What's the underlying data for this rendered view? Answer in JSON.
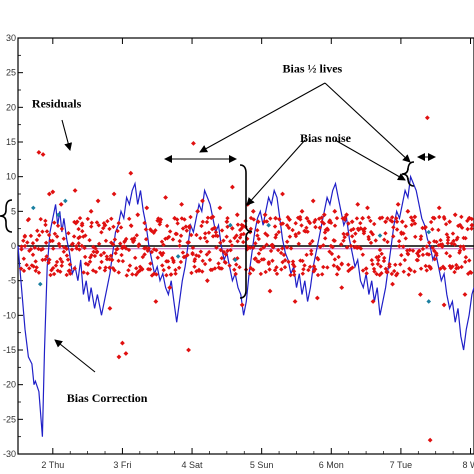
{
  "chart_data": {
    "type": "scatter",
    "title": "",
    "xlabel": "",
    "ylabel": "",
    "xlim": [
      1.5,
      8.05
    ],
    "ylim": [
      -30,
      30
    ],
    "x_ticks": [
      {
        "x": 2,
        "label": "2 Thu"
      },
      {
        "x": 3,
        "label": "3 Fri"
      },
      {
        "x": 4,
        "label": "4 Sat"
      },
      {
        "x": 5,
        "label": "5 Sun"
      },
      {
        "x": 6,
        "label": "6 Mon"
      },
      {
        "x": 7,
        "label": "7 Tue"
      },
      {
        "x": 8,
        "label": "8 W"
      }
    ],
    "y_ticks": [
      30,
      25,
      20,
      15,
      10,
      5,
      0,
      -5,
      -10,
      -15,
      -20,
      -25,
      -30
    ],
    "y_tick_labels": [
      "30",
      "25",
      "20",
      "15",
      "10",
      "5",
      "0",
      "-5",
      "-10",
      "-15",
      "-20",
      "-25",
      "-30"
    ],
    "reference_line": {
      "y": 0,
      "color": "#000000"
    },
    "colors": {
      "residuals": "#e01010",
      "bias_correction": "#2020c8",
      "highlight": "#1a7fa0",
      "zero_line": "#000000",
      "minor_line": "#c060c0"
    },
    "series": [
      {
        "type": "line",
        "values": [
          [
            1.5,
            0.0
          ],
          [
            1.6,
            -12.0
          ],
          [
            1.65,
            -16.0
          ],
          [
            1.7,
            -17.0
          ],
          [
            1.73,
            -20.0
          ],
          [
            1.75,
            -19.5
          ],
          [
            1.8,
            -21.0
          ],
          [
            1.85,
            -27.5
          ],
          [
            1.88,
            -15.0
          ],
          [
            1.92,
            -3.0
          ],
          [
            1.96,
            2.0
          ],
          [
            2.0,
            4.0
          ],
          [
            2.04,
            6.0
          ],
          [
            2.07,
            3.0
          ],
          [
            2.1,
            5.0
          ],
          [
            2.13,
            2.0
          ],
          [
            2.16,
            4.0
          ],
          [
            2.2,
            1.0
          ],
          [
            2.24,
            -1.0
          ],
          [
            2.28,
            -4.0
          ],
          [
            2.32,
            -3.0
          ],
          [
            2.36,
            -5.0
          ],
          [
            2.4,
            -2.0
          ],
          [
            2.44,
            -7.0
          ],
          [
            2.48,
            -5.0
          ],
          [
            2.52,
            -8.0
          ],
          [
            2.55,
            -6.0
          ],
          [
            2.6,
            -9.0
          ],
          [
            2.64,
            -7.0
          ],
          [
            2.7,
            -10.0
          ],
          [
            2.74,
            -8.0
          ],
          [
            2.78,
            -6.0
          ],
          [
            2.82,
            -4.0
          ],
          [
            2.86,
            -1.0
          ],
          [
            2.9,
            2.0
          ],
          [
            2.94,
            3.0
          ],
          [
            2.98,
            5.0
          ],
          [
            3.02,
            4.0
          ],
          [
            3.06,
            7.0
          ],
          [
            3.1,
            6.0
          ],
          [
            3.14,
            8.0
          ],
          [
            3.18,
            9.0
          ],
          [
            3.22,
            6.0
          ],
          [
            3.26,
            8.0
          ],
          [
            3.3,
            5.0
          ],
          [
            3.34,
            3.0
          ],
          [
            3.38,
            0.0
          ],
          [
            3.42,
            -2.0
          ],
          [
            3.46,
            -4.0
          ],
          [
            3.5,
            -3.0
          ],
          [
            3.54,
            -5.0
          ],
          [
            3.58,
            -4.0
          ],
          [
            3.62,
            -6.0
          ],
          [
            3.66,
            -7.0
          ],
          [
            3.7,
            -5.0
          ],
          [
            3.74,
            -8.0
          ],
          [
            3.78,
            -11.0
          ],
          [
            3.82,
            -8.0
          ],
          [
            3.86,
            -5.0
          ],
          [
            3.9,
            -3.0
          ],
          [
            3.94,
            0.0
          ],
          [
            3.98,
            3.0
          ],
          [
            4.02,
            2.0
          ],
          [
            4.06,
            4.0
          ],
          [
            4.1,
            6.0
          ],
          [
            4.14,
            5.0
          ],
          [
            4.18,
            8.0
          ],
          [
            4.22,
            7.0
          ],
          [
            4.26,
            6.0
          ],
          [
            4.3,
            4.0
          ],
          [
            4.34,
            2.0
          ],
          [
            4.38,
            3.0
          ],
          [
            4.42,
            0.0
          ],
          [
            4.46,
            -2.0
          ],
          [
            4.5,
            -1.0
          ],
          [
            4.54,
            -3.0
          ],
          [
            4.58,
            -5.0
          ],
          [
            4.62,
            -4.0
          ],
          [
            4.66,
            -6.0
          ],
          [
            4.7,
            -7.0
          ],
          [
            4.74,
            -10.0
          ],
          [
            4.78,
            -8.0
          ],
          [
            4.82,
            -4.0
          ],
          [
            4.86,
            -1.0
          ],
          [
            4.9,
            2.0
          ],
          [
            4.94,
            4.0
          ],
          [
            4.98,
            5.0
          ],
          [
            5.02,
            3.0
          ],
          [
            5.06,
            5.0
          ],
          [
            5.1,
            7.0
          ],
          [
            5.14,
            6.0
          ],
          [
            5.18,
            8.0
          ],
          [
            5.22,
            7.0
          ],
          [
            5.26,
            4.0
          ],
          [
            5.3,
            1.0
          ],
          [
            5.34,
            -1.0
          ],
          [
            5.38,
            -2.0
          ],
          [
            5.42,
            -4.0
          ],
          [
            5.46,
            -3.0
          ],
          [
            5.5,
            -6.0
          ],
          [
            5.54,
            -4.0
          ],
          [
            5.58,
            -7.0
          ],
          [
            5.62,
            -5.0
          ],
          [
            5.66,
            -8.0
          ],
          [
            5.7,
            -6.0
          ],
          [
            5.74,
            -3.0
          ],
          [
            5.78,
            -1.0
          ],
          [
            5.82,
            1.0
          ],
          [
            5.86,
            3.0
          ],
          [
            5.9,
            5.0
          ],
          [
            5.94,
            7.0
          ],
          [
            5.98,
            6.0
          ],
          [
            6.02,
            8.0
          ],
          [
            6.06,
            9.0
          ],
          [
            6.1,
            7.0
          ],
          [
            6.14,
            5.0
          ],
          [
            6.18,
            3.0
          ],
          [
            6.22,
            4.0
          ],
          [
            6.26,
            1.0
          ],
          [
            6.3,
            -1.0
          ],
          [
            6.34,
            -3.0
          ],
          [
            6.38,
            -2.0
          ],
          [
            6.42,
            -5.0
          ],
          [
            6.46,
            -6.0
          ],
          [
            6.5,
            -4.0
          ],
          [
            6.54,
            -7.0
          ],
          [
            6.58,
            -5.0
          ],
          [
            6.62,
            -8.0
          ],
          [
            6.66,
            -6.0
          ],
          [
            6.7,
            -10.0
          ],
          [
            6.74,
            -8.0
          ],
          [
            6.78,
            -6.0
          ],
          [
            6.82,
            -3.0
          ],
          [
            6.86,
            0.0
          ],
          [
            6.9,
            3.0
          ],
          [
            6.94,
            5.0
          ],
          [
            6.98,
            4.0
          ],
          [
            7.02,
            6.0
          ],
          [
            7.06,
            8.0
          ],
          [
            7.1,
            7.0
          ],
          [
            7.14,
            10.0
          ],
          [
            7.18,
            9.0
          ],
          [
            7.22,
            8.0
          ],
          [
            7.26,
            6.0
          ],
          [
            7.3,
            4.0
          ],
          [
            7.34,
            3.0
          ],
          [
            7.38,
            1.0
          ],
          [
            7.42,
            0.0
          ],
          [
            7.46,
            -2.0
          ],
          [
            7.5,
            -1.0
          ],
          [
            7.54,
            -3.0
          ],
          [
            7.58,
            -5.0
          ],
          [
            7.62,
            -4.0
          ],
          [
            7.66,
            -7.0
          ],
          [
            7.7,
            -9.0
          ],
          [
            7.74,
            -8.0
          ],
          [
            7.78,
            -11.0
          ],
          [
            7.82,
            -9.0
          ],
          [
            7.86,
            -13.0
          ],
          [
            7.9,
            -15.0
          ],
          [
            7.94,
            -12.0
          ],
          [
            7.98,
            -10.0
          ],
          [
            8.02,
            -7.0
          ],
          [
            8.05,
            -6.0
          ]
        ]
      },
      {
        "type": "scatter",
        "values": [
          [
            1.8,
            13.5
          ],
          [
            1.86,
            13.2
          ],
          [
            1.95,
            7.5
          ],
          [
            2.0,
            7.8
          ],
          [
            2.12,
            6.0
          ],
          [
            2.32,
            8.0
          ],
          [
            2.35,
            3.5
          ],
          [
            2.42,
            3.0
          ],
          [
            2.55,
            5.0
          ],
          [
            2.65,
            6.5
          ],
          [
            2.75,
            3.0
          ],
          [
            2.82,
            -9.0
          ],
          [
            2.85,
            -2.0
          ],
          [
            2.88,
            7.5
          ],
          [
            2.95,
            -16.0
          ],
          [
            3.0,
            -14.0
          ],
          [
            3.05,
            -15.5
          ],
          [
            3.12,
            10.5
          ],
          [
            3.22,
            4.5
          ],
          [
            3.35,
            5.5
          ],
          [
            3.48,
            -8.0
          ],
          [
            3.55,
            3.8
          ],
          [
            3.62,
            7.0
          ],
          [
            3.68,
            -6.0
          ],
          [
            3.75,
            4.0
          ],
          [
            3.85,
            6.0
          ],
          [
            3.95,
            -15.0
          ],
          [
            4.02,
            14.8
          ],
          [
            4.08,
            5.0
          ],
          [
            4.15,
            6.5
          ],
          [
            4.22,
            -5.0
          ],
          [
            4.3,
            4.2
          ],
          [
            4.4,
            5.5
          ],
          [
            4.5,
            3.5
          ],
          [
            4.58,
            8.5
          ],
          [
            4.65,
            4.5
          ],
          [
            4.72,
            -8.5
          ],
          [
            4.8,
            6.0
          ],
          [
            4.88,
            5.0
          ],
          [
            4.95,
            3.5
          ],
          [
            5.05,
            4.5
          ],
          [
            5.12,
            -6.5
          ],
          [
            5.2,
            4.0
          ],
          [
            5.3,
            7.5
          ],
          [
            5.4,
            3.8
          ],
          [
            5.48,
            -8.0
          ],
          [
            5.58,
            5.0
          ],
          [
            5.65,
            4.0
          ],
          [
            5.74,
            6.5
          ],
          [
            5.8,
            -7.5
          ],
          [
            5.9,
            4.5
          ],
          [
            5.98,
            3.5
          ],
          [
            6.05,
            5.0
          ],
          [
            6.15,
            -6.0
          ],
          [
            6.22,
            4.5
          ],
          [
            6.3,
            3.5
          ],
          [
            6.38,
            6.0
          ],
          [
            6.45,
            4.0
          ],
          [
            6.52,
            5.5
          ],
          [
            6.6,
            -8.0
          ],
          [
            6.7,
            4.0
          ],
          [
            6.78,
            3.5
          ],
          [
            6.88,
            -5.5
          ],
          [
            6.96,
            6.0
          ],
          [
            7.02,
            3.5
          ],
          [
            7.1,
            5.0
          ],
          [
            7.2,
            4.2
          ],
          [
            7.28,
            -7.0
          ],
          [
            7.38,
            18.5
          ],
          [
            7.42,
            -28.0
          ],
          [
            7.48,
            4.0
          ],
          [
            7.55,
            5.5
          ],
          [
            7.62,
            -8.5
          ],
          [
            7.7,
            3.5
          ],
          [
            7.78,
            4.5
          ],
          [
            7.85,
            3.0
          ],
          [
            7.92,
            -7.0
          ],
          [
            7.98,
            4.0
          ],
          [
            8.02,
            3.0
          ]
        ]
      },
      {
        "type": "scatter",
        "values": [
          [
            1.72,
            5.5
          ],
          [
            1.82,
            -5.5
          ],
          [
            2.18,
            6.5
          ],
          [
            2.08,
            4.5
          ],
          [
            3.8,
            -1.5
          ],
          [
            4.55,
            3.0
          ],
          [
            4.62,
            -2.0
          ],
          [
            5.1,
            3.0
          ],
          [
            6.7,
            1.5
          ],
          [
            7.4,
            -8.0
          ],
          [
            7.4,
            2.0
          ]
        ]
      }
    ],
    "annotations": [
      {
        "text": "Residuals",
        "x": 1.7,
        "y": 20.0
      },
      {
        "text": "Bias ½ lives",
        "x": 5.3,
        "y": 25.0
      },
      {
        "text": "Bias noise",
        "x": 5.55,
        "y": 15.0
      },
      {
        "text": "Bias Correction",
        "x": 2.2,
        "y": -22.5
      }
    ]
  }
}
